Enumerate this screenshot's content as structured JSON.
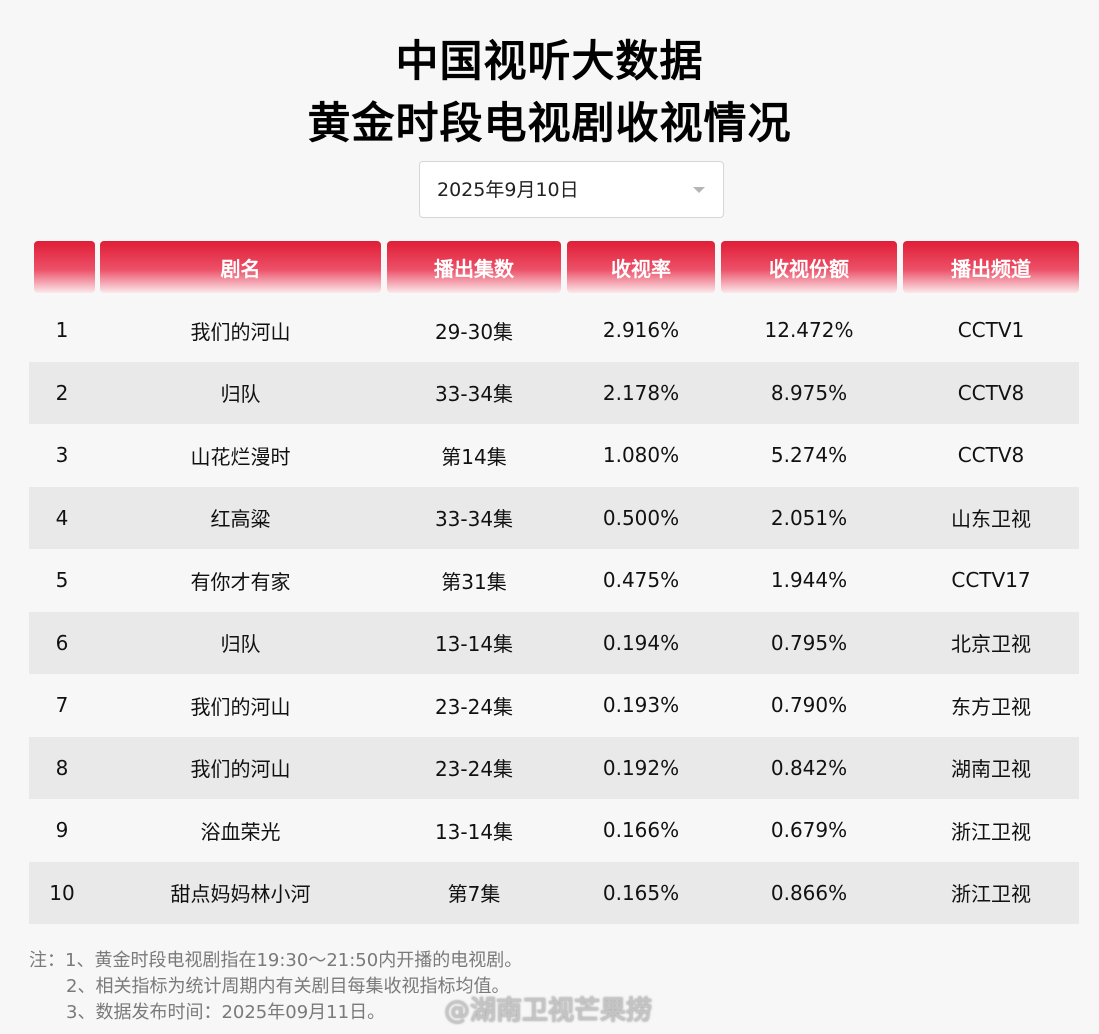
{
  "title": {
    "line1": "中国视听大数据",
    "line2": "黄金时段电视剧收视情况"
  },
  "date_select": {
    "value": "2025年9月10日",
    "icon": "caret-down-icon"
  },
  "table": {
    "headers": [
      "",
      "剧名",
      "播出集数",
      "收视率",
      "收视份额",
      "播出频道"
    ],
    "rows": [
      {
        "rank": "1",
        "name": "我们的河山",
        "episodes": "29-30集",
        "rating": "2.916%",
        "share": "12.472%",
        "channel": "CCTV1"
      },
      {
        "rank": "2",
        "name": "归队",
        "episodes": "33-34集",
        "rating": "2.178%",
        "share": "8.975%",
        "channel": "CCTV8"
      },
      {
        "rank": "3",
        "name": "山花烂漫时",
        "episodes": "第14集",
        "rating": "1.080%",
        "share": "5.274%",
        "channel": "CCTV8"
      },
      {
        "rank": "4",
        "name": "红高粱",
        "episodes": "33-34集",
        "rating": "0.500%",
        "share": "2.051%",
        "channel": "山东卫视"
      },
      {
        "rank": "5",
        "name": "有你才有家",
        "episodes": "第31集",
        "rating": "0.475%",
        "share": "1.944%",
        "channel": "CCTV17"
      },
      {
        "rank": "6",
        "name": "归队",
        "episodes": "13-14集",
        "rating": "0.194%",
        "share": "0.795%",
        "channel": "北京卫视"
      },
      {
        "rank": "7",
        "name": "我们的河山",
        "episodes": "23-24集",
        "rating": "0.193%",
        "share": "0.790%",
        "channel": "东方卫视"
      },
      {
        "rank": "8",
        "name": "我们的河山",
        "episodes": "23-24集",
        "rating": "0.192%",
        "share": "0.842%",
        "channel": "湖南卫视"
      },
      {
        "rank": "9",
        "name": "浴血荣光",
        "episodes": "13-14集",
        "rating": "0.166%",
        "share": "0.679%",
        "channel": "浙江卫视"
      },
      {
        "rank": "10",
        "name": "甜点妈妈林小河",
        "episodes": "第7集",
        "rating": "0.165%",
        "share": "0.866%",
        "channel": "浙江卫视"
      }
    ]
  },
  "notes": {
    "line1": "注：1、黄金时段电视剧指在19:30～21:50内开播的电视剧。",
    "line2": "2、相关指标为统计周期内有关剧目每集收视指标均值。",
    "line3": "3、数据发布时间：2025年09月11日。"
  },
  "watermark": "@湖南卫视芒果捞",
  "colors": {
    "header_red": "#e01d36",
    "row_alt": "#e9e9e9",
    "background": "#f7f7f7"
  }
}
